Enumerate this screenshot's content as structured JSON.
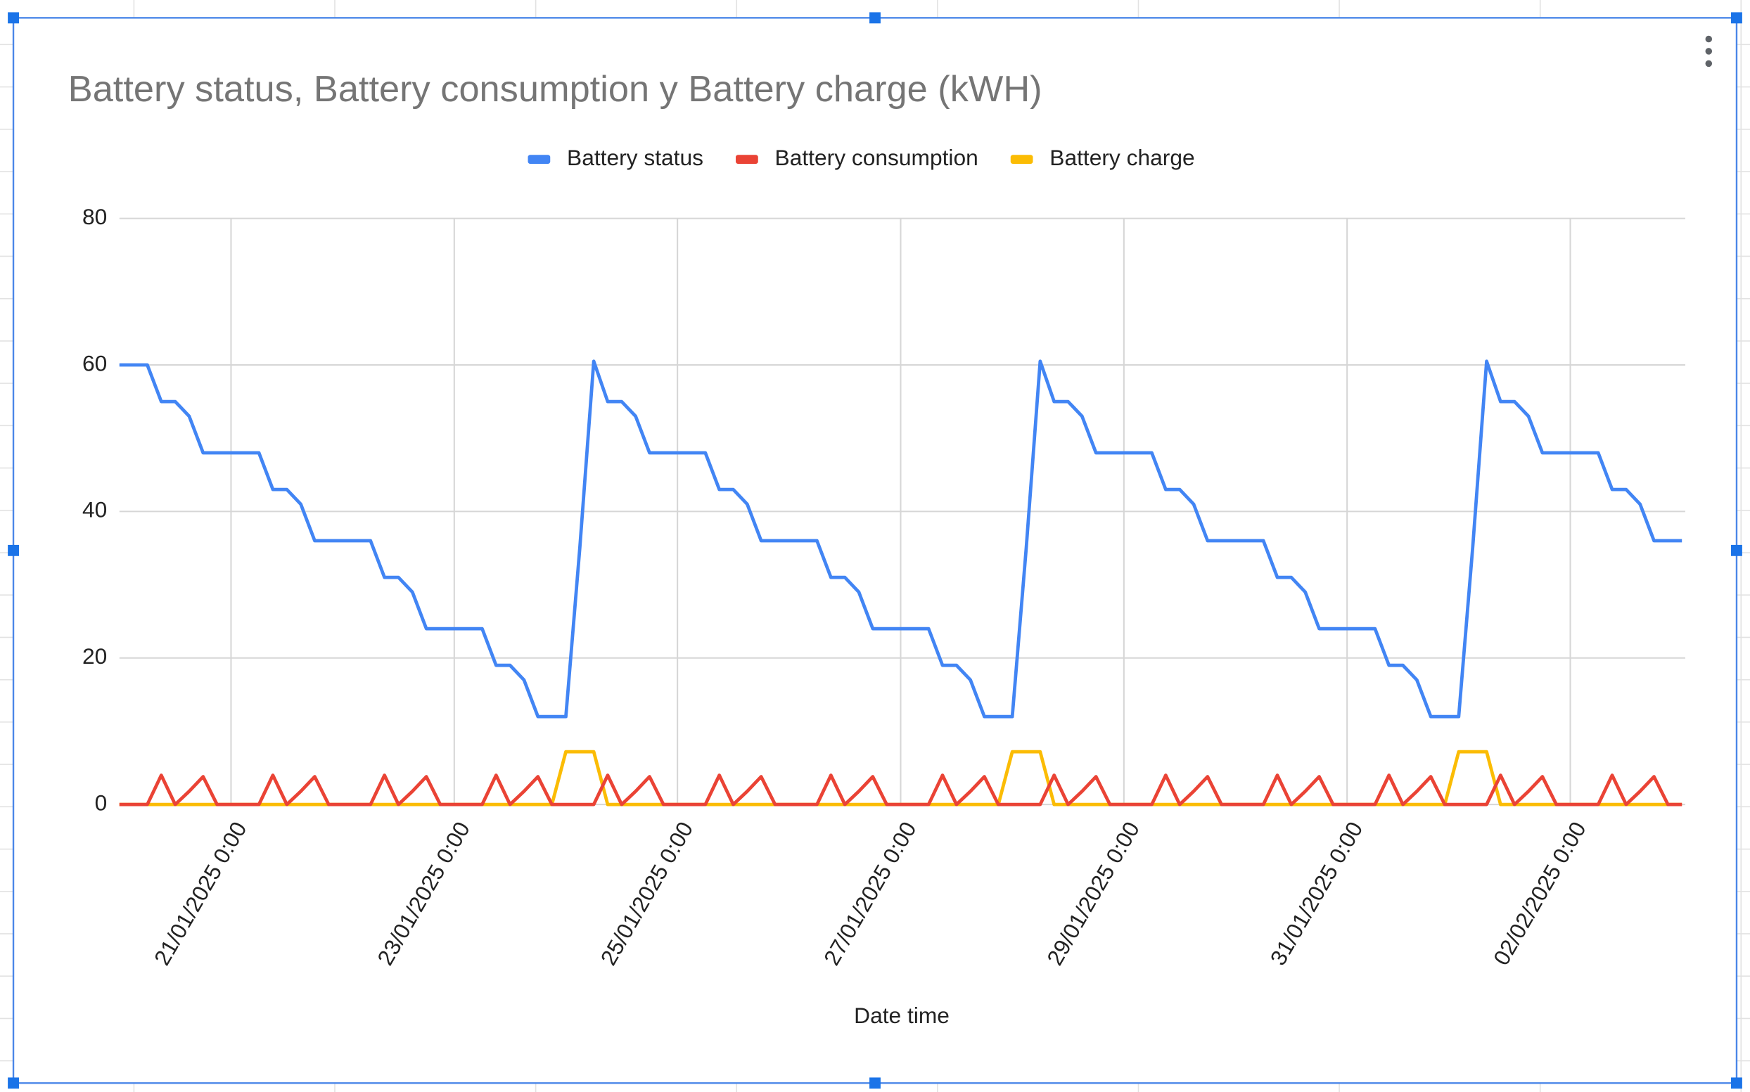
{
  "chart_data": {
    "type": "line",
    "title": "Battery status, Battery consumption y Battery charge (kWH)",
    "x_label": "Date time",
    "x": [
      "20/01/2025 0:00",
      "20/01/2025 3:00",
      "20/01/2025 6:00",
      "20/01/2025 9:00",
      "20/01/2025 12:00",
      "20/01/2025 15:00",
      "20/01/2025 18:00",
      "20/01/2025 21:00",
      "21/01/2025 0:00",
      "21/01/2025 3:00",
      "21/01/2025 6:00",
      "21/01/2025 9:00",
      "21/01/2025 12:00",
      "21/01/2025 15:00",
      "21/01/2025 18:00",
      "21/01/2025 21:00",
      "22/01/2025 0:00",
      "22/01/2025 3:00",
      "22/01/2025 6:00",
      "22/01/2025 9:00",
      "22/01/2025 12:00",
      "22/01/2025 15:00",
      "22/01/2025 18:00",
      "22/01/2025 21:00",
      "23/01/2025 0:00",
      "23/01/2025 3:00",
      "23/01/2025 6:00",
      "23/01/2025 9:00",
      "23/01/2025 12:00",
      "23/01/2025 15:00",
      "23/01/2025 18:00",
      "23/01/2025 21:00",
      "24/01/2025 0:00",
      "24/01/2025 3:00",
      "24/01/2025 6:00",
      "24/01/2025 9:00",
      "24/01/2025 12:00",
      "24/01/2025 15:00",
      "24/01/2025 18:00",
      "24/01/2025 21:00",
      "25/01/2025 0:00",
      "25/01/2025 3:00",
      "25/01/2025 6:00",
      "25/01/2025 9:00",
      "25/01/2025 12:00",
      "25/01/2025 15:00",
      "25/01/2025 18:00",
      "25/01/2025 21:00",
      "26/01/2025 0:00",
      "26/01/2025 3:00",
      "26/01/2025 6:00",
      "26/01/2025 9:00",
      "26/01/2025 12:00",
      "26/01/2025 15:00",
      "26/01/2025 18:00",
      "26/01/2025 21:00",
      "27/01/2025 0:00",
      "27/01/2025 3:00",
      "27/01/2025 6:00",
      "27/01/2025 9:00",
      "27/01/2025 12:00",
      "27/01/2025 15:00",
      "27/01/2025 18:00",
      "27/01/2025 21:00",
      "28/01/2025 0:00",
      "28/01/2025 3:00",
      "28/01/2025 6:00",
      "28/01/2025 9:00",
      "28/01/2025 12:00",
      "28/01/2025 15:00",
      "28/01/2025 18:00",
      "28/01/2025 21:00",
      "29/01/2025 0:00",
      "29/01/2025 3:00",
      "29/01/2025 6:00",
      "29/01/2025 9:00",
      "29/01/2025 12:00",
      "29/01/2025 15:00",
      "29/01/2025 18:00",
      "29/01/2025 21:00",
      "30/01/2025 0:00",
      "30/01/2025 3:00",
      "30/01/2025 6:00",
      "30/01/2025 9:00",
      "30/01/2025 12:00",
      "30/01/2025 15:00",
      "30/01/2025 18:00",
      "30/01/2025 21:00",
      "31/01/2025 0:00",
      "31/01/2025 3:00",
      "31/01/2025 6:00",
      "31/01/2025 9:00",
      "31/01/2025 12:00",
      "31/01/2025 15:00",
      "31/01/2025 18:00",
      "31/01/2025 21:00",
      "01/02/2025 0:00",
      "01/02/2025 3:00",
      "01/02/2025 6:00",
      "01/02/2025 9:00",
      "01/02/2025 12:00",
      "01/02/2025 15:00",
      "01/02/2025 18:00",
      "01/02/2025 21:00",
      "02/02/2025 0:00",
      "02/02/2025 3:00",
      "02/02/2025 6:00",
      "02/02/2025 9:00",
      "02/02/2025 12:00",
      "02/02/2025 15:00",
      "02/02/2025 18:00",
      "02/02/2025 21:00",
      "03/02/2025 0:00"
    ],
    "series": [
      {
        "name": "Battery status",
        "color": "#4285f4",
        "values": [
          60,
          60,
          60,
          55,
          55,
          53,
          48,
          48,
          48,
          48,
          48,
          43,
          43,
          41,
          36,
          36,
          36,
          36,
          36,
          31,
          31,
          29,
          24,
          24,
          24,
          24,
          24,
          19,
          19,
          17,
          12,
          12,
          12,
          35,
          60.5,
          55,
          55,
          53,
          48,
          48,
          48,
          48,
          48,
          43,
          43,
          41,
          36,
          36,
          36,
          36,
          36,
          31,
          31,
          29,
          24,
          24,
          24,
          24,
          24,
          19,
          19,
          17,
          12,
          12,
          12,
          35,
          60.5,
          55,
          55,
          53,
          48,
          48,
          48,
          48,
          48,
          43,
          43,
          41,
          36,
          36,
          36,
          36,
          36,
          31,
          31,
          29,
          24,
          24,
          24,
          24,
          24,
          19,
          19,
          17,
          12,
          12,
          12,
          35,
          60.5,
          55,
          55,
          53,
          48,
          48,
          48,
          48,
          48,
          43,
          43,
          41,
          36,
          36,
          36
        ]
      },
      {
        "name": "Battery consumption",
        "color": "#ea4335",
        "values": [
          0,
          0,
          0,
          4,
          0,
          1.8,
          3.8,
          0,
          0,
          0,
          0,
          4,
          0,
          1.8,
          3.8,
          0,
          0,
          0,
          0,
          4,
          0,
          1.8,
          3.8,
          0,
          0,
          0,
          0,
          4,
          0,
          1.8,
          3.8,
          0,
          0,
          0,
          0,
          4,
          0,
          1.8,
          3.8,
          0,
          0,
          0,
          0,
          4,
          0,
          1.8,
          3.8,
          0,
          0,
          0,
          0,
          4,
          0,
          1.8,
          3.8,
          0,
          0,
          0,
          0,
          4,
          0,
          1.8,
          3.8,
          0,
          0,
          0,
          0,
          4,
          0,
          1.8,
          3.8,
          0,
          0,
          0,
          0,
          4,
          0,
          1.8,
          3.8,
          0,
          0,
          0,
          0,
          4,
          0,
          1.8,
          3.8,
          0,
          0,
          0,
          0,
          4,
          0,
          1.8,
          3.8,
          0,
          0,
          0,
          0,
          4,
          0,
          1.8,
          3.8,
          0,
          0,
          0,
          0,
          4,
          0,
          1.8,
          3.8,
          0,
          0
        ]
      },
      {
        "name": "Battery charge",
        "color": "#fbbc04",
        "values": [
          0,
          0,
          0,
          0,
          0,
          0,
          0,
          0,
          0,
          0,
          0,
          0,
          0,
          0,
          0,
          0,
          0,
          0,
          0,
          0,
          0,
          0,
          0,
          0,
          0,
          0,
          0,
          0,
          0,
          0,
          0,
          0,
          7.2,
          7.2,
          7.2,
          0,
          0,
          0,
          0,
          0,
          0,
          0,
          0,
          0,
          0,
          0,
          0,
          0,
          0,
          0,
          0,
          0,
          0,
          0,
          0,
          0,
          0,
          0,
          0,
          0,
          0,
          0,
          0,
          0,
          7.2,
          7.2,
          7.2,
          0,
          0,
          0,
          0,
          0,
          0,
          0,
          0,
          0,
          0,
          0,
          0,
          0,
          0,
          0,
          0,
          0,
          0,
          0,
          0,
          0,
          0,
          0,
          0,
          0,
          0,
          0,
          0,
          0,
          7.2,
          7.2,
          7.2,
          0,
          0,
          0,
          0,
          0,
          0,
          0,
          0,
          0,
          0,
          0,
          0,
          0,
          0
        ]
      }
    ],
    "xlim": [
      "20/01/2025 0:00",
      "03/02/2025 0:00"
    ],
    "xticks": [
      "21/01/2025 0:00",
      "23/01/2025 0:00",
      "25/01/2025 0:00",
      "27/01/2025 0:00",
      "29/01/2025 0:00",
      "31/01/2025 0:00",
      "02/02/2025 0:00"
    ],
    "ylim": [
      0,
      80
    ],
    "yticks": [
      0,
      20,
      40,
      60,
      80
    ],
    "grid": true,
    "legend": "top"
  }
}
